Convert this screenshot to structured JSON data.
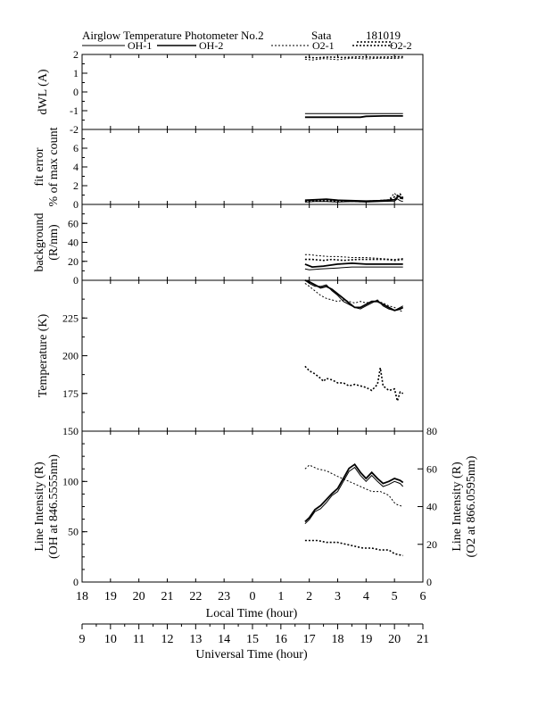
{
  "header": {
    "title": "Airglow Temperature Photometer No.2",
    "site": "Sata",
    "date": "181019"
  },
  "legend": [
    {
      "label": "OH-1",
      "dash": "solid",
      "width": 1
    },
    {
      "label": "OH-2",
      "dash": "solid",
      "width": 1.6
    },
    {
      "label": "O2-1",
      "dash": "dotted",
      "width": 1
    },
    {
      "label": "O2-2",
      "dash": "dotted",
      "width": 1.6
    }
  ],
  "chart_data": [
    {
      "type": "line",
      "panel": "dwl",
      "ylabel": "dWL (A)",
      "ylim": [
        -2,
        2
      ],
      "yticks": [
        "2",
        "1",
        "0",
        "-1",
        "-2"
      ],
      "series": [
        {
          "name": "OH-1",
          "x": [
            1.85,
            2.5,
            3.5,
            4.5,
            5.3
          ],
          "y": [
            -1.15,
            -1.15,
            -1.15,
            -1.15,
            -1.15
          ]
        },
        {
          "name": "OH-2",
          "x": [
            1.85,
            2.6,
            3.2,
            3.8,
            4.0,
            4.6,
            5.3
          ],
          "y": [
            -1.35,
            -1.35,
            -1.35,
            -1.35,
            -1.3,
            -1.28,
            -1.28
          ]
        },
        {
          "name": "O2-1",
          "x": [
            1.85,
            2.1,
            2.5,
            3.0,
            3.5,
            4.0,
            4.5,
            5.0,
            5.3
          ],
          "y": [
            1.75,
            1.7,
            1.78,
            1.72,
            1.8,
            1.76,
            1.8,
            1.78,
            1.82
          ]
        },
        {
          "name": "O2-2",
          "x": [
            1.85,
            2.2,
            2.7,
            3.2,
            3.8,
            4.3,
            4.8,
            5.3
          ],
          "y": [
            1.85,
            1.82,
            1.86,
            1.84,
            1.87,
            1.85,
            1.86,
            1.88
          ]
        }
      ]
    },
    {
      "type": "line",
      "panel": "fit_error",
      "ylabel": [
        "fit error",
        "% of max count"
      ],
      "ylim": [
        0,
        8
      ],
      "yticks": [
        "6",
        "4",
        "2",
        "0"
      ],
      "series": [
        {
          "name": "OH-1",
          "x": [
            1.85,
            2.2,
            2.6,
            3.0,
            3.5,
            4.0,
            4.5,
            5.0,
            5.1,
            5.2,
            5.3
          ],
          "y": [
            0.25,
            0.3,
            0.3,
            0.25,
            0.3,
            0.25,
            0.3,
            0.35,
            0.6,
            0.4,
            0.3
          ]
        },
        {
          "name": "OH-2",
          "x": [
            1.85,
            2.2,
            2.6,
            3.0,
            3.5,
            4.0,
            4.5,
            5.0,
            5.15,
            5.3
          ],
          "y": [
            0.45,
            0.5,
            0.55,
            0.45,
            0.4,
            0.35,
            0.4,
            0.5,
            0.9,
            0.6
          ]
        },
        {
          "name": "O2-1",
          "x": [
            1.85,
            2.3,
            2.8,
            3.3,
            3.8,
            4.3,
            4.8,
            5.0,
            5.1,
            5.3
          ],
          "y": [
            0.3,
            0.35,
            0.4,
            0.3,
            0.35,
            0.4,
            0.5,
            1.2,
            0.8,
            0.5
          ]
        },
        {
          "name": "O2-2",
          "x": [
            1.85,
            2.3,
            2.8,
            3.3,
            3.8,
            4.3,
            4.8,
            5.05,
            5.2,
            5.3
          ],
          "y": [
            0.35,
            0.4,
            0.35,
            0.4,
            0.3,
            0.35,
            0.45,
            0.9,
            1.1,
            0.7
          ]
        }
      ]
    },
    {
      "type": "line",
      "panel": "background",
      "ylabel": [
        "background",
        "(R/nm)"
      ],
      "ylim": [
        0,
        80
      ],
      "yticks": [
        "60",
        "40",
        "20",
        "0"
      ],
      "series": [
        {
          "name": "OH-1",
          "x": [
            1.85,
            2.0,
            2.4,
            3.0,
            3.5,
            4.0,
            4.5,
            5.0,
            5.3
          ],
          "y": [
            12,
            11,
            12,
            13,
            14,
            14,
            14,
            14,
            14
          ]
        },
        {
          "name": "OH-2",
          "x": [
            1.85,
            2.1,
            2.5,
            3.0,
            3.5,
            4.0,
            4.5,
            5.0,
            5.3
          ],
          "y": [
            17,
            14,
            15,
            17,
            18,
            17,
            17,
            17,
            17
          ]
        },
        {
          "name": "O2-1",
          "x": [
            1.85,
            2.0,
            2.3,
            2.7,
            3.0,
            3.5,
            4.0,
            4.5,
            5.0,
            5.3
          ],
          "y": [
            27,
            27,
            26,
            25,
            25,
            24,
            24,
            23,
            22,
            23
          ]
        },
        {
          "name": "O2-2",
          "x": [
            1.85,
            2.1,
            2.5,
            2.8,
            3.2,
            3.7,
            4.2,
            4.7,
            5.0,
            5.3
          ],
          "y": [
            22,
            22,
            21,
            22,
            21,
            22,
            22,
            22,
            21,
            22
          ]
        }
      ]
    },
    {
      "type": "line",
      "panel": "temperature",
      "ylabel": "Temperature (K)",
      "ylim": [
        150,
        250
      ],
      "yticks": [
        "225",
        "200",
        "175"
      ],
      "series": [
        {
          "name": "OH-1",
          "x": [
            1.85,
            2.0,
            2.2,
            2.4,
            2.6,
            2.8,
            3.0,
            3.2,
            3.4,
            3.6,
            3.8,
            4.0,
            4.2,
            4.4,
            4.6,
            4.8,
            5.0,
            5.2,
            5.3
          ],
          "y": [
            250,
            248,
            246,
            246,
            247,
            243,
            240,
            236,
            234,
            232,
            231,
            233,
            235,
            237,
            233,
            231,
            230,
            232,
            233
          ]
        },
        {
          "name": "OH-2",
          "x": [
            1.85,
            2.0,
            2.2,
            2.4,
            2.6,
            2.8,
            3.0,
            3.2,
            3.4,
            3.6,
            3.8,
            4.0,
            4.2,
            4.4,
            4.6,
            4.8,
            5.0,
            5.2,
            5.3
          ],
          "y": [
            250,
            249,
            247,
            245,
            246,
            244,
            241,
            238,
            235,
            232,
            232,
            234,
            236,
            236,
            234,
            232,
            230,
            231,
            232
          ]
        },
        {
          "name": "O2-1",
          "x": [
            1.85,
            2.0,
            2.2,
            2.4,
            2.6,
            2.8,
            3.0,
            3.2,
            3.4,
            3.6,
            3.8,
            4.0,
            4.2,
            4.4,
            4.6,
            4.8,
            5.0,
            5.2,
            5.3
          ],
          "y": [
            248,
            246,
            243,
            240,
            238,
            237,
            236,
            237,
            236,
            235,
            236,
            235,
            236,
            236,
            235,
            233,
            232,
            230,
            229
          ]
        },
        {
          "name": "O2-2",
          "x": [
            1.85,
            2.0,
            2.2,
            2.4,
            2.5,
            2.6,
            2.8,
            3.0,
            3.2,
            3.4,
            3.6,
            3.8,
            4.0,
            4.2,
            4.4,
            4.5,
            4.6,
            4.8,
            5.0,
            5.1,
            5.2,
            5.3
          ],
          "y": [
            193,
            190,
            188,
            185,
            183,
            185,
            184,
            182,
            182,
            180,
            181,
            180,
            179,
            177,
            181,
            192,
            180,
            177,
            178,
            170,
            176,
            175
          ]
        }
      ]
    },
    {
      "type": "line",
      "panel": "line_intensity",
      "ylabel": [
        "Line Intensity (R)",
        "(OH at 846.5555nm)"
      ],
      "ylim": [
        0,
        150
      ],
      "yticks": [
        "150",
        "100",
        "50",
        "0"
      ],
      "ylabel_right": [
        "Line Intensity (R)",
        "(O2 at 866.0595nm)"
      ],
      "ylim_right": [
        0,
        80
      ],
      "yticks_right": [
        "80",
        "60",
        "40",
        "20",
        "0"
      ],
      "series": [
        {
          "name": "OH-1",
          "axis": "left",
          "x": [
            1.85,
            2.0,
            2.2,
            2.4,
            2.6,
            2.8,
            3.0,
            3.2,
            3.4,
            3.6,
            3.8,
            4.0,
            4.2,
            4.4,
            4.6,
            4.8,
            5.0,
            5.2,
            5.3
          ],
          "y": [
            58,
            62,
            70,
            73,
            79,
            86,
            90,
            100,
            110,
            114,
            106,
            100,
            106,
            100,
            95,
            97,
            100,
            98,
            95
          ]
        },
        {
          "name": "OH-2",
          "axis": "left",
          "x": [
            1.85,
            2.0,
            2.2,
            2.4,
            2.6,
            2.8,
            3.0,
            3.2,
            3.4,
            3.6,
            3.8,
            4.0,
            4.2,
            4.4,
            4.6,
            4.8,
            5.0,
            5.2,
            5.3
          ],
          "y": [
            60,
            64,
            72,
            76,
            82,
            88,
            93,
            103,
            113,
            117,
            109,
            103,
            109,
            103,
            98,
            100,
            103,
            101,
            99
          ]
        },
        {
          "name": "O2-1",
          "axis": "right",
          "x": [
            1.85,
            2.0,
            2.3,
            2.6,
            3.0,
            3.3,
            3.6,
            3.9,
            4.2,
            4.5,
            4.8,
            5.0,
            5.1,
            5.3
          ],
          "y": [
            60,
            62,
            60,
            59,
            56,
            54,
            52,
            50,
            48,
            48,
            46,
            42,
            41,
            40
          ]
        },
        {
          "name": "O2-2",
          "axis": "right",
          "x": [
            1.85,
            2.0,
            2.3,
            2.6,
            3.0,
            3.3,
            3.6,
            3.9,
            4.2,
            4.5,
            4.8,
            5.0,
            5.3
          ],
          "y": [
            22,
            22,
            22,
            21,
            21,
            20,
            19,
            18,
            18,
            17,
            17,
            15,
            14
          ]
        }
      ]
    }
  ],
  "x_axis_local": {
    "label": "Local Time (hour)",
    "range": [
      18,
      30
    ],
    "tick_labels": [
      "18",
      "19",
      "20",
      "21",
      "22",
      "23",
      "0",
      "1",
      "2",
      "3",
      "4",
      "5",
      "6"
    ]
  },
  "x_axis_ut": {
    "label": "Universal Time (hour)",
    "range": [
      9,
      21
    ],
    "tick_labels": [
      "9",
      "10",
      "11",
      "12",
      "13",
      "14",
      "15",
      "16",
      "17",
      "18",
      "19",
      "20",
      "21"
    ]
  }
}
